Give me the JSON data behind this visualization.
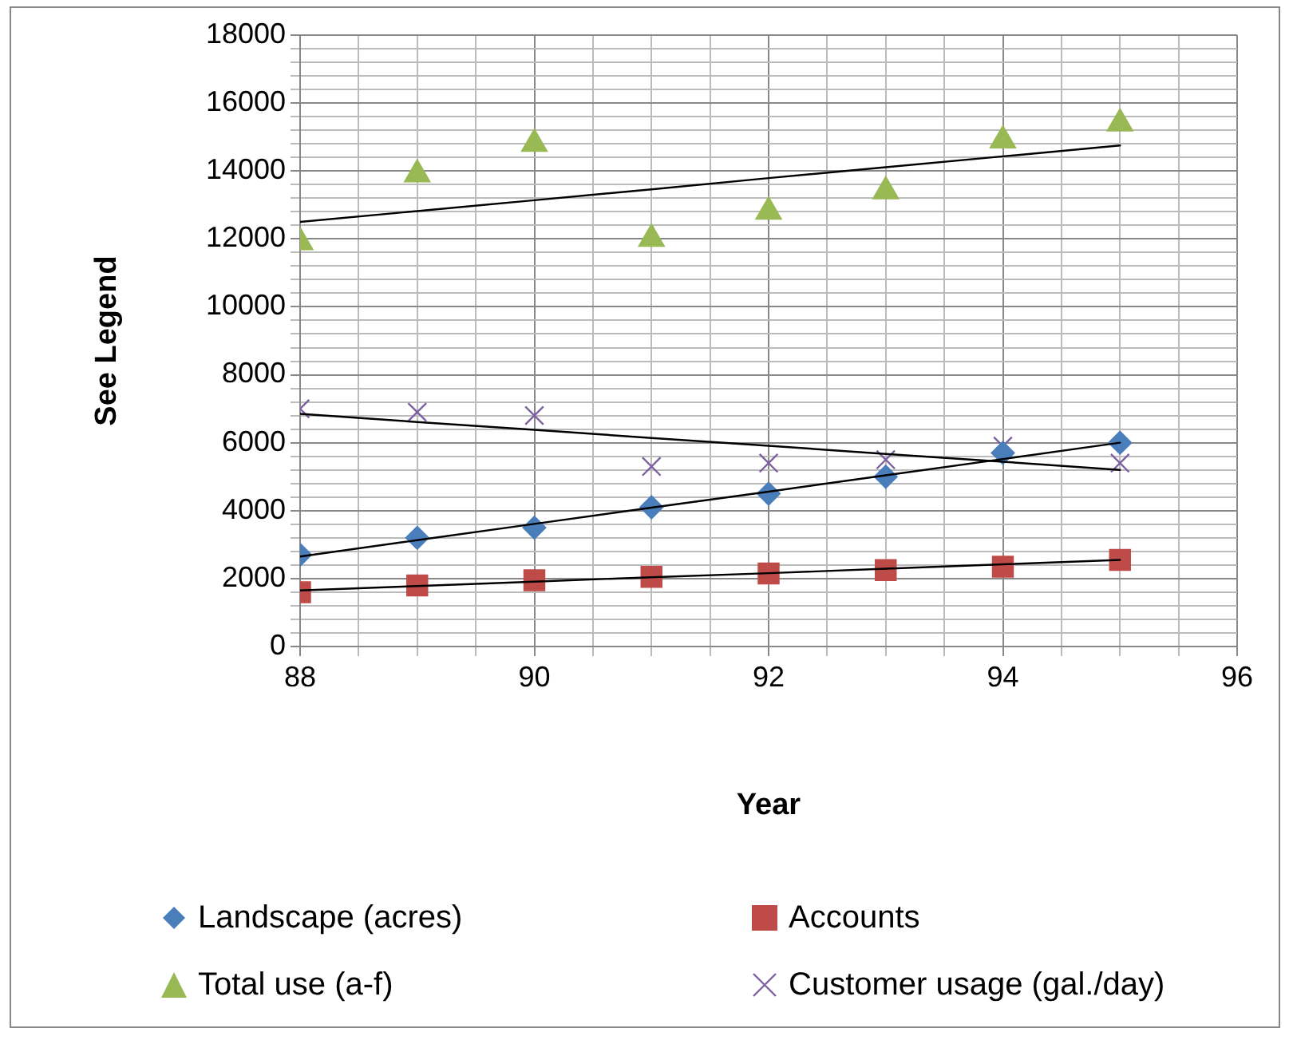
{
  "chart_data": {
    "type": "scatter",
    "xlabel": "Year",
    "ylabel": "See Legend",
    "xlim": [
      88,
      96
    ],
    "ylim": [
      0,
      18000
    ],
    "xticks": [
      88,
      {
        "value": 88.5,
        "label": null
      },
      {
        "value": 89,
        "label": null
      },
      {
        "value": 89.5,
        "label": null
      },
      90,
      {
        "value": 90.5,
        "label": null
      },
      {
        "value": 91,
        "label": null
      },
      {
        "value": 91.5,
        "label": null
      },
      92,
      {
        "value": 92.5,
        "label": null
      },
      {
        "value": 93,
        "label": null
      },
      {
        "value": 93.5,
        "label": null
      },
      94,
      {
        "value": 94.5,
        "label": null
      },
      {
        "value": 95,
        "label": null
      },
      {
        "value": 95.5,
        "label": null
      },
      96
    ],
    "yticks": [
      0,
      {
        "value": 400,
        "label": null
      },
      {
        "value": 800,
        "label": null
      },
      {
        "value": 1200,
        "label": null
      },
      {
        "value": 1600,
        "label": null
      },
      2000,
      {
        "value": 2400,
        "label": null
      },
      {
        "value": 2800,
        "label": null
      },
      {
        "value": 3200,
        "label": null
      },
      {
        "value": 3600,
        "label": null
      },
      4000,
      {
        "value": 4400,
        "label": null
      },
      {
        "value": 4800,
        "label": null
      },
      {
        "value": 5200,
        "label": null
      },
      {
        "value": 5600,
        "label": null
      },
      6000,
      {
        "value": 6400,
        "label": null
      },
      {
        "value": 6800,
        "label": null
      },
      {
        "value": 7200,
        "label": null
      },
      {
        "value": 7600,
        "label": null
      },
      8000,
      {
        "value": 8400,
        "label": null
      },
      {
        "value": 8800,
        "label": null
      },
      {
        "value": 9200,
        "label": null
      },
      {
        "value": 9600,
        "label": null
      },
      10000,
      {
        "value": 10400,
        "label": null
      },
      {
        "value": 10800,
        "label": null
      },
      {
        "value": 11200,
        "label": null
      },
      {
        "value": 11600,
        "label": null
      },
      12000,
      {
        "value": 12400,
        "label": null
      },
      {
        "value": 12800,
        "label": null
      },
      {
        "value": 13200,
        "label": null
      },
      {
        "value": 13600,
        "label": null
      },
      14000,
      {
        "value": 14400,
        "label": null
      },
      {
        "value": 14800,
        "label": null
      },
      {
        "value": 15200,
        "label": null
      },
      {
        "value": 15600,
        "label": null
      },
      16000,
      {
        "value": 16400,
        "label": null
      },
      {
        "value": 16800,
        "label": null
      },
      {
        "value": 17200,
        "label": null
      },
      {
        "value": 17600,
        "label": null
      },
      18000
    ],
    "grid": true,
    "legend": "bottom",
    "x": [
      88,
      89,
      90,
      91,
      92,
      93,
      94,
      95
    ],
    "series": [
      {
        "name": "Landscape (acres)",
        "color": "#4a7ebb",
        "marker": "diamond",
        "values": [
          2700,
          3200,
          3500,
          4100,
          4500,
          5000,
          5700,
          6000
        ]
      },
      {
        "name": "Accounts",
        "color": "#be4b48",
        "marker": "square",
        "values": [
          1600,
          1800,
          1950,
          2050,
          2150,
          2250,
          2350,
          2550
        ]
      },
      {
        "name": "Total use (a-f)",
        "color": "#98b954",
        "marker": "triangle",
        "values": [
          11900,
          13900,
          14800,
          12000,
          12800,
          13400,
          14900,
          15400
        ]
      },
      {
        "name": "Customer usage (gal./day)",
        "color": "#7d60a0",
        "marker": "cross",
        "values": [
          7000,
          6900,
          6800,
          5300,
          5400,
          5500,
          5900,
          5400
        ]
      },
      {
        "type": "line",
        "color": "#000000",
        "values": [
          2650,
          3130,
          3610,
          4090,
          4560,
          5040,
          5520,
          6000
        ]
      },
      {
        "type": "line",
        "color": "#000000",
        "values": [
          1650,
          1780,
          1910,
          2040,
          2160,
          2290,
          2420,
          2550
        ]
      },
      {
        "type": "line",
        "color": "#000000",
        "values": [
          12500,
          12820,
          13140,
          13460,
          13790,
          14110,
          14430,
          14750
        ]
      },
      {
        "type": "line",
        "color": "#000000",
        "values": [
          6850,
          6610,
          6380,
          6140,
          5910,
          5670,
          5440,
          5200
        ]
      }
    ]
  }
}
